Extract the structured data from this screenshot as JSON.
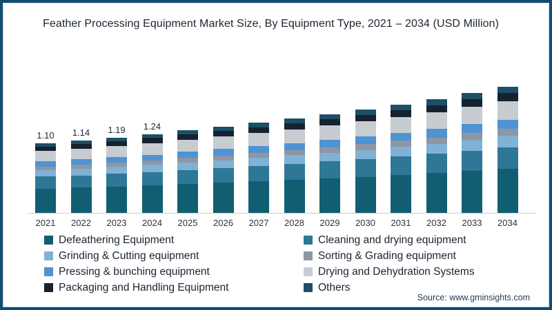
{
  "title": "Feather Processing Equipment Market Size, By Equipment Type, 2021 – 2034 (USD Million)",
  "source": "Source: www.gminsights.com",
  "colors": {
    "frame_border": "#134a6e",
    "frame_inner_line": "#b9dcec",
    "axis_line": "#c9cdd1",
    "title_text": "#1a2430",
    "axis_text": "#2f3237",
    "value_label_text": "#1d2633",
    "source_text": "#1d3a55"
  },
  "chart_data": {
    "type": "bar",
    "stacked": true,
    "title": "Feather Processing Equipment Market Size, By Equipment Type, 2021 – 2034 (USD Million)",
    "xlabel": "",
    "ylabel": "USD Million",
    "grid": false,
    "legend_position": "bottom",
    "categories": [
      "2021",
      "2022",
      "2023",
      "2024",
      "2025",
      "2026",
      "2027",
      "2028",
      "2029",
      "2030",
      "2031",
      "2032",
      "2033",
      "2034"
    ],
    "totals": [
      1.1,
      1.14,
      1.19,
      1.24,
      1.3,
      1.36,
      1.42,
      1.49,
      1.56,
      1.63,
      1.71,
      1.79,
      1.89,
      1.99
    ],
    "total_labels_shown": {
      "2021": "1.10",
      "2022": "1.14",
      "2023": "1.19",
      "2024": "1.24"
    },
    "series": [
      {
        "name": "Defeathering Equipment",
        "color": "#115e73",
        "values": [
          0.385,
          0.399,
          0.417,
          0.434,
          0.455,
          0.476,
          0.497,
          0.522,
          0.546,
          0.571,
          0.599,
          0.627,
          0.662,
          0.697
        ]
      },
      {
        "name": "Cleaning and drying equipment",
        "color": "#2e7796",
        "values": [
          0.187,
          0.194,
          0.202,
          0.211,
          0.221,
          0.231,
          0.241,
          0.253,
          0.265,
          0.277,
          0.291,
          0.304,
          0.321,
          0.338
        ]
      },
      {
        "name": "Grinding & Cutting equipment",
        "color": "#7fb2d4",
        "values": [
          0.099,
          0.103,
          0.107,
          0.112,
          0.117,
          0.122,
          0.128,
          0.134,
          0.14,
          0.147,
          0.154,
          0.161,
          0.17,
          0.179
        ]
      },
      {
        "name": "Sorting & Grading equipment",
        "color": "#8e96a3",
        "values": [
          0.061,
          0.063,
          0.065,
          0.068,
          0.072,
          0.075,
          0.078,
          0.082,
          0.086,
          0.09,
          0.094,
          0.098,
          0.104,
          0.109
        ]
      },
      {
        "name": "Pressing & bunching equipment",
        "color": "#4f93d2",
        "values": [
          0.083,
          0.086,
          0.089,
          0.093,
          0.098,
          0.102,
          0.107,
          0.112,
          0.117,
          0.122,
          0.128,
          0.134,
          0.142,
          0.149
        ]
      },
      {
        "name": "Drying and Dehydration Systems",
        "color": "#c7ccd1",
        "values": [
          0.16,
          0.165,
          0.173,
          0.18,
          0.189,
          0.197,
          0.206,
          0.216,
          0.226,
          0.236,
          0.248,
          0.26,
          0.274,
          0.289
        ]
      },
      {
        "name": "Packaging and Handling Equipment",
        "color": "#16222f",
        "values": [
          0.072,
          0.074,
          0.077,
          0.081,
          0.085,
          0.088,
          0.092,
          0.097,
          0.101,
          0.106,
          0.111,
          0.116,
          0.123,
          0.129
        ]
      },
      {
        "name": "Others",
        "color": "#1d4f66",
        "values": [
          0.055,
          0.057,
          0.06,
          0.062,
          0.065,
          0.068,
          0.071,
          0.075,
          0.078,
          0.082,
          0.086,
          0.09,
          0.095,
          0.1
        ]
      }
    ]
  }
}
